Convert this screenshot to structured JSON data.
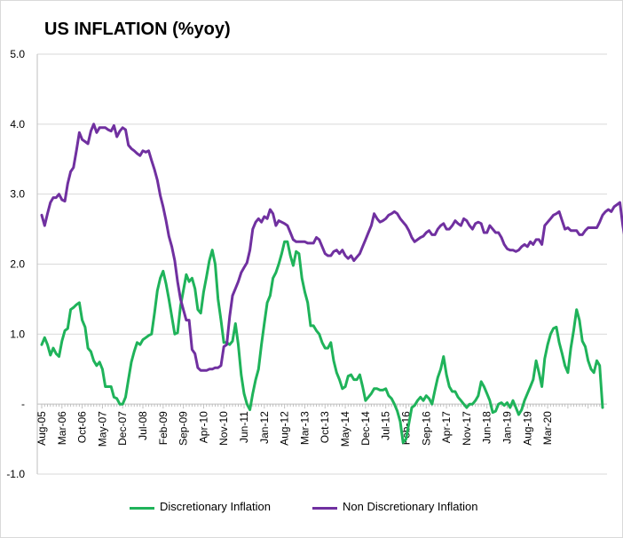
{
  "chart_data": {
    "type": "line",
    "title": "US INFLATION (%yoy)",
    "xlabel": "",
    "ylabel": "",
    "ylim": [
      -1.0,
      5.0
    ],
    "y_ticks": [
      "-1.0",
      "-",
      "1.0",
      "2.0",
      "3.0",
      "4.0",
      "5.0"
    ],
    "x_ticks": [
      "Aug-05",
      "Mar-06",
      "Oct-06",
      "May-07",
      "Dec-07",
      "Jul-08",
      "Feb-09",
      "Sep-09",
      "Apr-10",
      "Nov-10",
      "Jun-11",
      "Jan-12",
      "Aug-12",
      "Mar-13",
      "Oct-13",
      "May-14",
      "Dec-14",
      "Jul-15",
      "Feb-16",
      "Sep-16",
      "Apr-17",
      "Nov-17",
      "Jun-18",
      "Jan-19",
      "Aug-19",
      "Mar-20"
    ],
    "x_start": "Aug-05",
    "frequency": "monthly",
    "grid": true,
    "legend": "bottom",
    "series": [
      {
        "name": "Discretionary Inflation",
        "color": "#1fb35a",
        "values": [
          0.85,
          0.95,
          0.85,
          0.7,
          0.8,
          0.72,
          0.68,
          0.9,
          1.05,
          1.08,
          1.35,
          1.38,
          1.42,
          1.45,
          1.2,
          1.1,
          0.8,
          0.75,
          0.62,
          0.55,
          0.6,
          0.5,
          0.25,
          0.25,
          0.25,
          0.1,
          0.08,
          0.0,
          0.0,
          0.1,
          0.35,
          0.6,
          0.75,
          0.88,
          0.85,
          0.92,
          0.95,
          0.98,
          1.0,
          1.3,
          1.62,
          1.8,
          1.9,
          1.72,
          1.5,
          1.25,
          1.0,
          1.02,
          1.4,
          1.62,
          1.85,
          1.75,
          1.8,
          1.65,
          1.35,
          1.3,
          1.6,
          1.82,
          2.05,
          2.2,
          2.0,
          1.5,
          1.2,
          0.88,
          0.88,
          0.85,
          0.9,
          1.15,
          0.85,
          0.42,
          0.15,
          0.0,
          -0.08,
          0.15,
          0.35,
          0.5,
          0.85,
          1.15,
          1.45,
          1.55,
          1.8,
          1.88,
          2.0,
          2.15,
          2.32,
          2.32,
          2.12,
          1.98,
          2.18,
          2.15,
          1.8,
          1.6,
          1.45,
          1.12,
          1.12,
          1.05,
          1.0,
          0.88,
          0.8,
          0.8,
          0.88,
          0.62,
          0.45,
          0.35,
          0.22,
          0.25,
          0.4,
          0.42,
          0.35,
          0.35,
          0.42,
          0.25,
          0.05,
          0.1,
          0.15,
          0.22,
          0.22,
          0.2,
          0.2,
          0.22,
          0.12,
          0.08,
          0.0,
          -0.1,
          -0.25,
          -0.55,
          -0.5,
          -0.28,
          -0.05,
          -0.02,
          0.05,
          0.1,
          0.05,
          0.12,
          0.08,
          0.0,
          0.2,
          0.38,
          0.5,
          0.68,
          0.42,
          0.25,
          0.18,
          0.18,
          0.1,
          0.05,
          0.0,
          -0.05,
          0.0,
          0.0,
          0.05,
          0.12,
          0.32,
          0.25,
          0.15,
          0.05,
          -0.12,
          -0.1,
          0.0,
          0.02,
          -0.02,
          0.02,
          -0.05,
          0.05,
          -0.05,
          -0.15,
          -0.08,
          0.05,
          0.15,
          0.25,
          0.35,
          0.62,
          0.45,
          0.25,
          0.65,
          0.85,
          1.0,
          1.08,
          1.1,
          0.88,
          0.72,
          0.55,
          0.45,
          0.8,
          1.05,
          1.35,
          1.2,
          0.9,
          0.82,
          0.62,
          0.5,
          0.45,
          0.62,
          0.55,
          -0.05
        ]
      },
      {
        "name": "Non Discretionary Inflation",
        "color": "#7030a0",
        "values": [
          2.7,
          2.55,
          2.72,
          2.88,
          2.95,
          2.95,
          3.0,
          2.92,
          2.9,
          3.15,
          3.32,
          3.38,
          3.62,
          3.88,
          3.78,
          3.75,
          3.72,
          3.9,
          4.0,
          3.88,
          3.95,
          3.95,
          3.95,
          3.92,
          3.9,
          3.98,
          3.82,
          3.9,
          3.95,
          3.92,
          3.7,
          3.65,
          3.62,
          3.58,
          3.55,
          3.62,
          3.6,
          3.62,
          3.48,
          3.35,
          3.2,
          2.98,
          2.82,
          2.62,
          2.4,
          2.25,
          2.05,
          1.75,
          1.5,
          1.35,
          1.2,
          1.2,
          0.78,
          0.72,
          0.52,
          0.48,
          0.48,
          0.48,
          0.5,
          0.5,
          0.52,
          0.52,
          0.55,
          0.82,
          0.85,
          1.25,
          1.55,
          1.65,
          1.75,
          1.88,
          1.95,
          2.02,
          2.2,
          2.5,
          2.6,
          2.65,
          2.6,
          2.68,
          2.65,
          2.78,
          2.72,
          2.55,
          2.62,
          2.6,
          2.58,
          2.55,
          2.45,
          2.35,
          2.32,
          2.32,
          2.32,
          2.32,
          2.3,
          2.3,
          2.3,
          2.38,
          2.35,
          2.25,
          2.15,
          2.12,
          2.12,
          2.18,
          2.2,
          2.15,
          2.2,
          2.12,
          2.08,
          2.12,
          2.05,
          2.1,
          2.15,
          2.25,
          2.35,
          2.45,
          2.55,
          2.72,
          2.65,
          2.6,
          2.62,
          2.65,
          2.7,
          2.72,
          2.75,
          2.72,
          2.65,
          2.6,
          2.55,
          2.48,
          2.38,
          2.32,
          2.35,
          2.38,
          2.4,
          2.45,
          2.48,
          2.42,
          2.42,
          2.5,
          2.55,
          2.58,
          2.5,
          2.5,
          2.55,
          2.62,
          2.58,
          2.55,
          2.65,
          2.62,
          2.55,
          2.5,
          2.58,
          2.6,
          2.58,
          2.45,
          2.45,
          2.55,
          2.5,
          2.45,
          2.45,
          2.38,
          2.28,
          2.22,
          2.2,
          2.2,
          2.18,
          2.2,
          2.25,
          2.28,
          2.25,
          2.32,
          2.28,
          2.35,
          2.35,
          2.28,
          2.55,
          2.6,
          2.65,
          2.7,
          2.72,
          2.75,
          2.62,
          2.5,
          2.52,
          2.48,
          2.48,
          2.48,
          2.42,
          2.42,
          2.48,
          2.52,
          2.52,
          2.52,
          2.52,
          2.6,
          2.7,
          2.75,
          2.78,
          2.75,
          2.82,
          2.85,
          2.88,
          2.55,
          2.3
        ]
      }
    ]
  }
}
